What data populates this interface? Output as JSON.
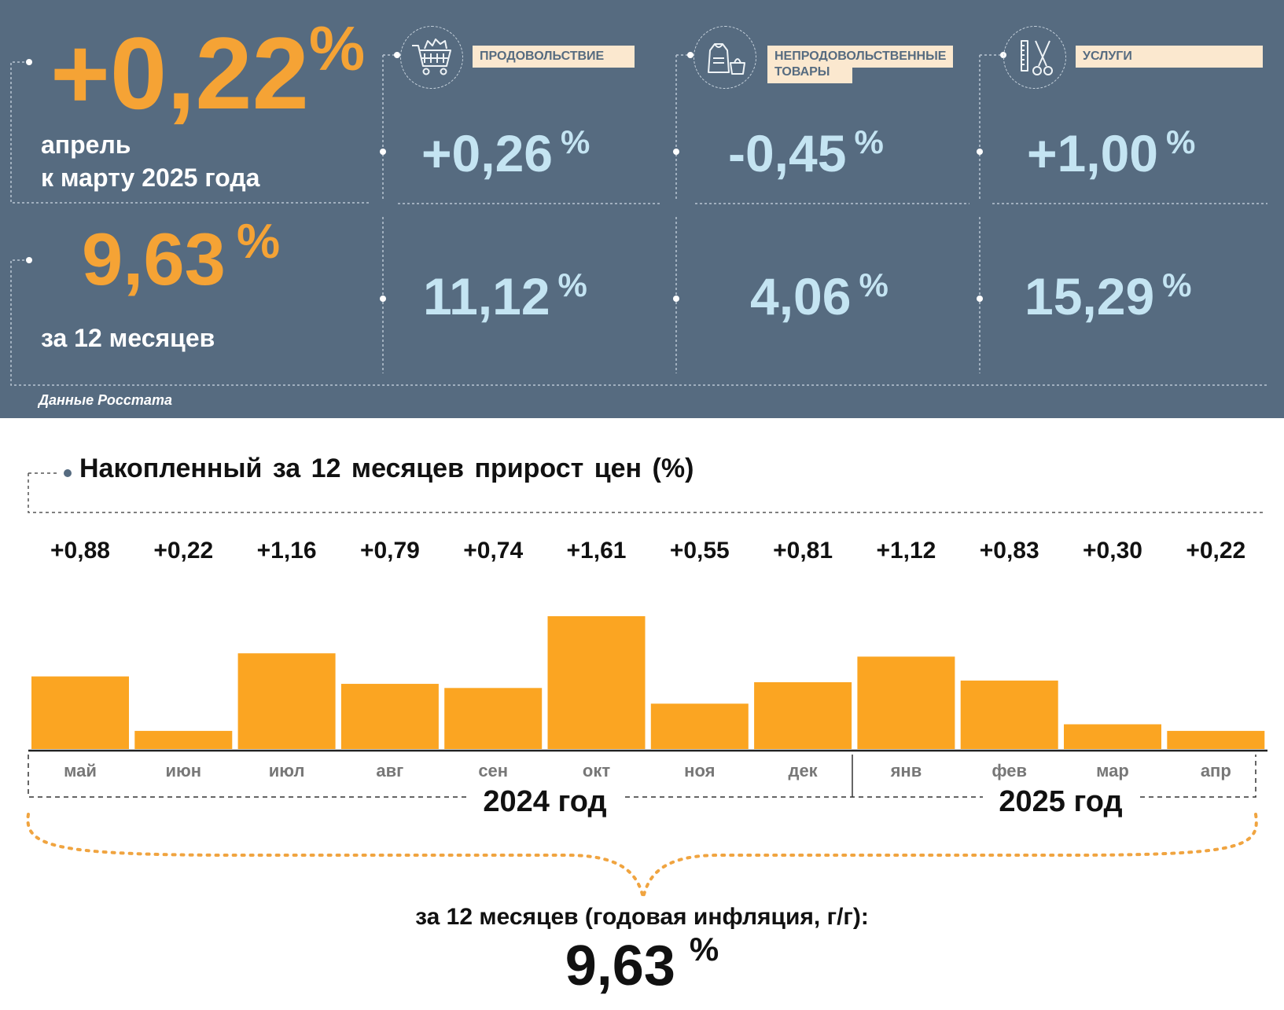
{
  "colors": {
    "panel_bg": "#566b80",
    "accent": "#f5a335",
    "bar": "#fba522",
    "light_blue": "#c4e4f2",
    "label_bg": "#fbe8cf"
  },
  "header": {
    "monthly_value": "+0,22",
    "percent_sign": "%",
    "monthly_caption_1": "апрель",
    "monthly_caption_2": "к марту 2025 года",
    "annual_value": "9,63",
    "annual_caption": "за 12 месяцев",
    "source": "Данные Росстата"
  },
  "categories": [
    {
      "label_1": "ПРОДОВОЛЬСТВИЕ",
      "label_2": "",
      "icon": "shopping-cart-icon",
      "monthly": "+0,26",
      "annual": "11,12"
    },
    {
      "label_1": "НЕПРОДОВОЛЬСТВЕННЫЕ",
      "label_2": "ТОВАРЫ",
      "icon": "clothing-bag-icon",
      "monthly": "-0,45",
      "annual": "4,06"
    },
    {
      "label_1": "УСЛУГИ",
      "label_2": "",
      "icon": "scissors-comb-icon",
      "monthly": "+1,00",
      "annual": "15,29"
    }
  ],
  "chart_data": {
    "type": "bar",
    "title": "Накопленный за 12 месяцев прирост цен (%)",
    "categories": [
      "май",
      "июн",
      "июл",
      "авг",
      "сен",
      "окт",
      "ноя",
      "дек",
      "янв",
      "фев",
      "мар",
      "апр"
    ],
    "values": [
      0.88,
      0.22,
      1.16,
      0.79,
      0.74,
      1.61,
      0.55,
      0.81,
      1.12,
      0.83,
      0.3,
      0.22
    ],
    "value_labels": [
      "+0,88",
      "+0,22",
      "+1,16",
      "+0,79",
      "+0,74",
      "+1,61",
      "+0,55",
      "+0,81",
      "+1,12",
      "+0,83",
      "+0,30",
      "+0,22"
    ],
    "year_groups": [
      {
        "label": "2024 год",
        "count": 8
      },
      {
        "label": "2025 год",
        "count": 4
      }
    ],
    "grid": false,
    "summary_caption": "за 12 месяцев (годовая инфляция, г/г):",
    "summary_value": "9,63",
    "summary_unit": "%"
  }
}
